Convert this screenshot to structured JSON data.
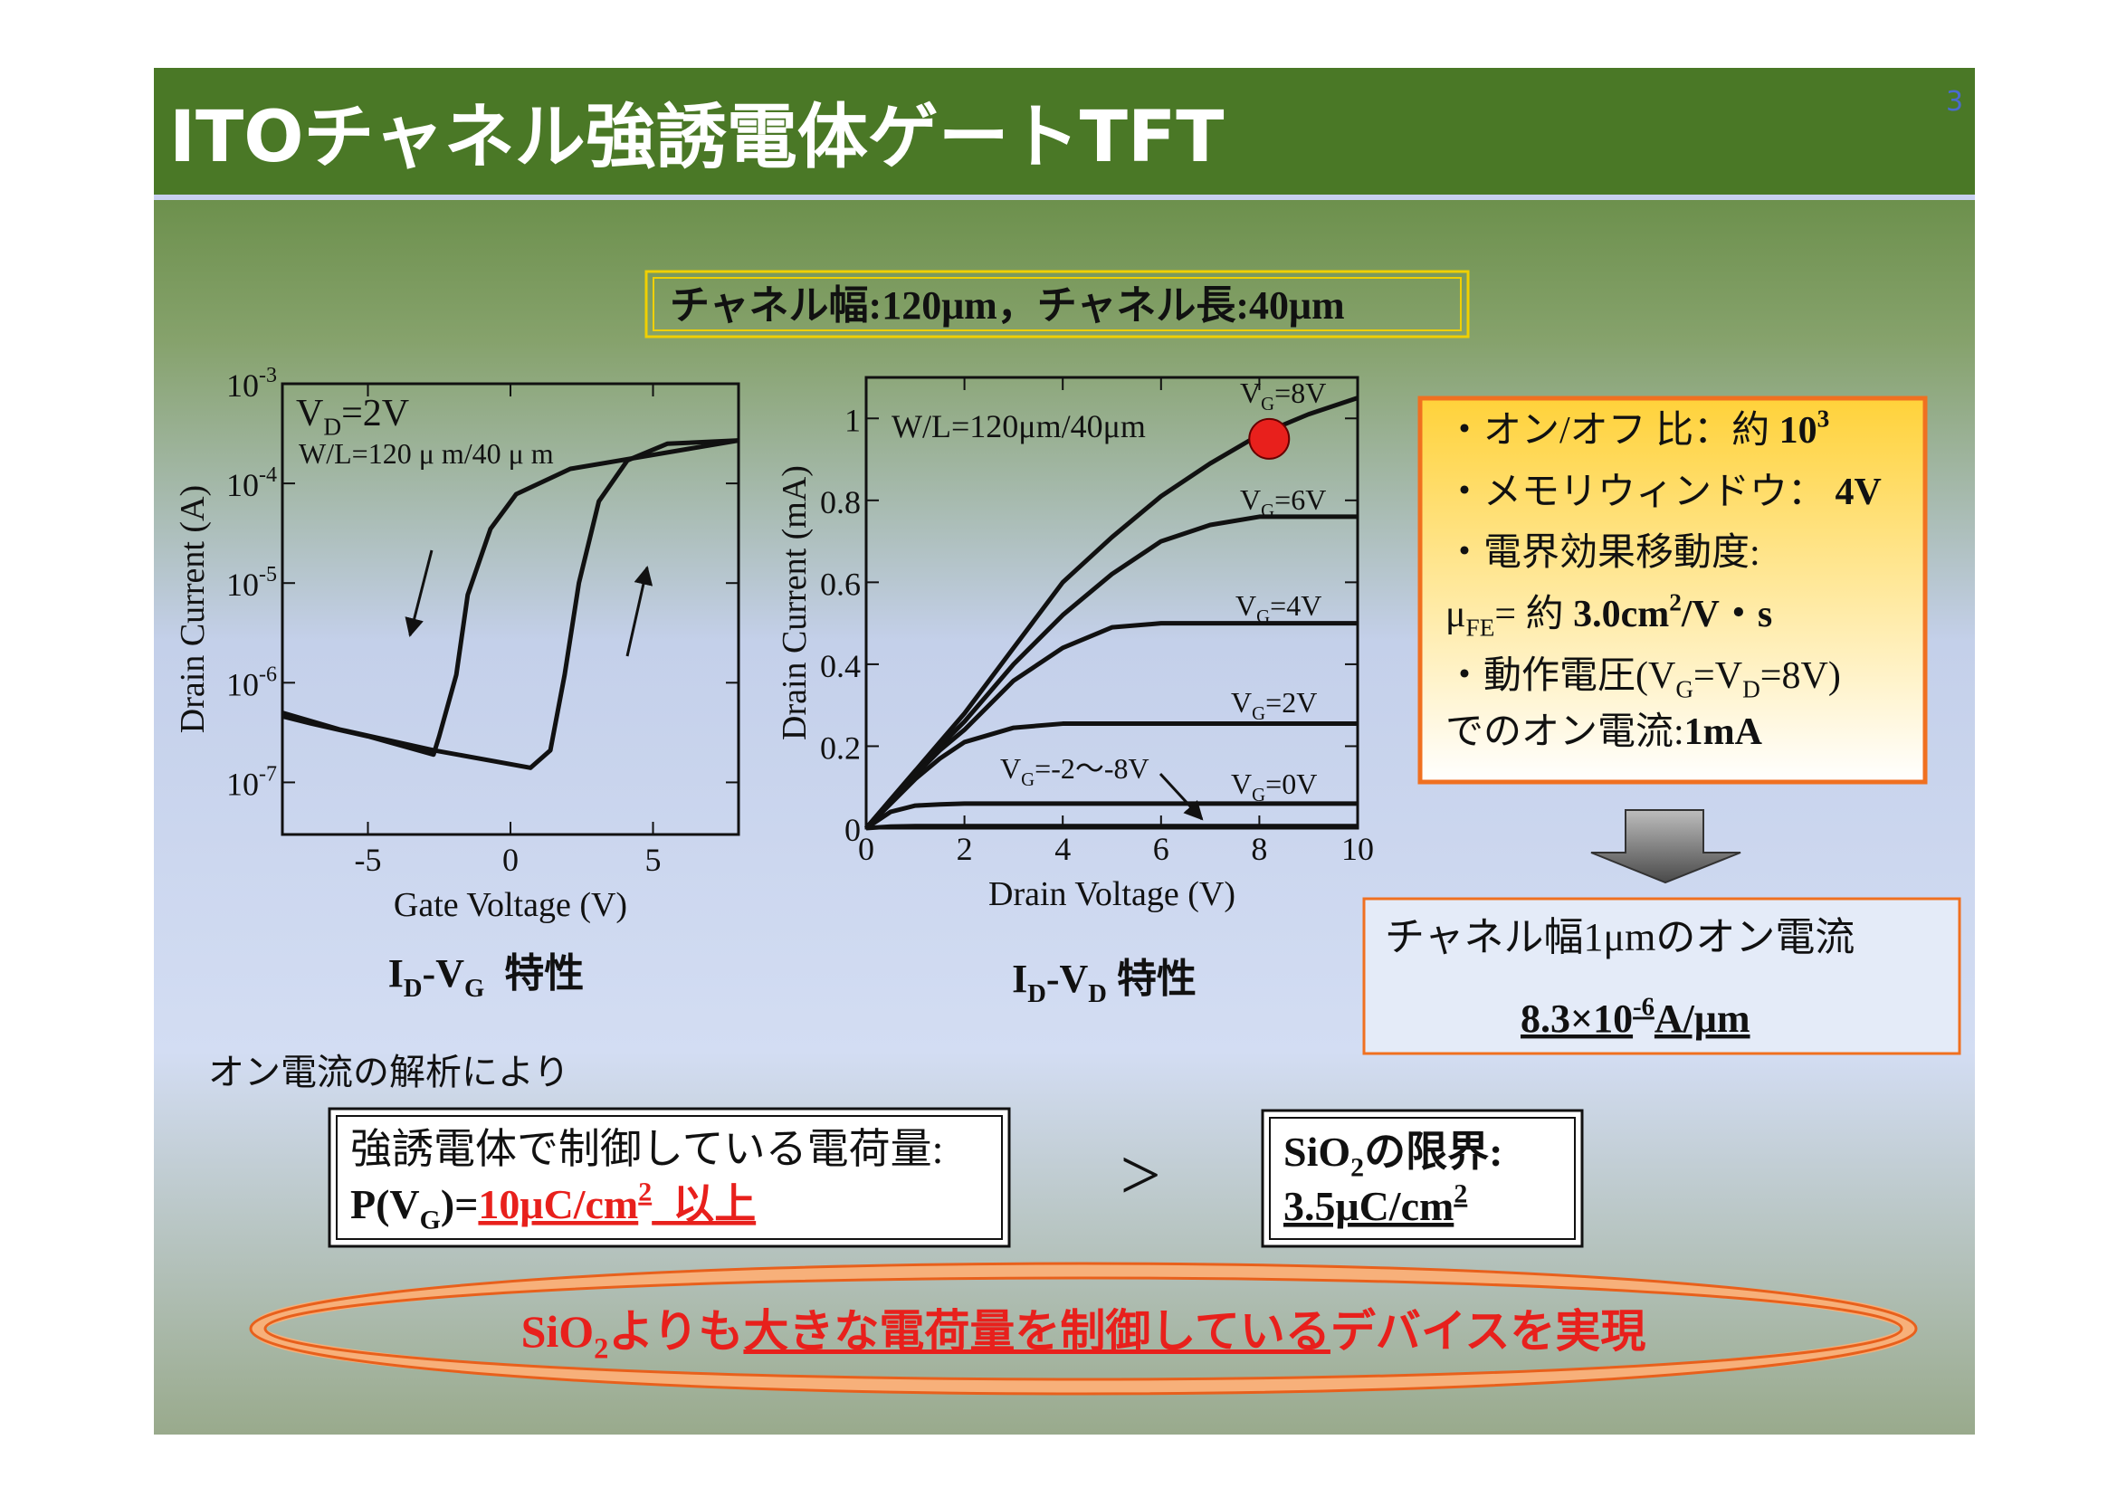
{
  "slide": {
    "title": "ITOチャネル強誘電体ゲートTFT",
    "page_number": "3",
    "spec": [
      {
        "text": "チャネル幅:120μm，チャネル長:40μm"
      }
    ],
    "summary_box": {
      "lines": [
        [
          {
            "text": "・オン/オフ 比：約 "
          },
          {
            "text": "10",
            "style": "b"
          },
          {
            "text": "3",
            "style": "sup b"
          }
        ],
        [
          {
            "text": "・メモリウィンドウ： "
          },
          {
            "text": "4V",
            "style": "b"
          }
        ],
        [
          {
            "text": "・電界効果移動度:"
          }
        ],
        [
          {
            "text": "μ"
          },
          {
            "text": "FE",
            "style": "sub"
          },
          {
            "text": "= 約 "
          },
          {
            "text": "3.0cm",
            "style": "b"
          },
          {
            "text": "2",
            "style": "sup b"
          },
          {
            "text": "/V・s",
            "style": "b"
          }
        ],
        [
          {
            "text": "・動作電圧(V"
          },
          {
            "text": "G",
            "style": "sub"
          },
          {
            "text": "=V"
          },
          {
            "text": "D",
            "style": "sub"
          },
          {
            "text": "=8V)"
          }
        ],
        [
          {
            "text": "でのオン電流:"
          },
          {
            "text": "1mA",
            "style": "b"
          }
        ]
      ]
    },
    "current_box": {
      "lines": [
        [
          {
            "text": "チャネル幅1μmのオン電流"
          }
        ],
        [
          {
            "text": "8.3×10",
            "style": "b u"
          },
          {
            "text": "-6",
            "style": "sup b u"
          },
          {
            "text": "A/μm",
            "style": "b u"
          }
        ]
      ]
    },
    "analysis_intro": "オン電流の解析により",
    "ferro_box": {
      "lines": [
        [
          {
            "text": "強誘電体で制御している電荷量:"
          }
        ],
        [
          {
            "text": "P(V",
            "style": "b"
          },
          {
            "text": "G",
            "style": "sub b"
          },
          {
            "text": ")=",
            "style": "b"
          },
          {
            "text": "10μC/cm",
            "style": "b red u"
          },
          {
            "text": "2",
            "style": "sup b red u"
          },
          {
            "text": "  以上",
            "style": "b red u"
          }
        ]
      ]
    },
    "comparison": ">",
    "sio2_box": {
      "lines": [
        [
          {
            "text": "SiO",
            "style": "b"
          },
          {
            "text": "2",
            "style": "sub b"
          },
          {
            "text": "の限界:",
            "style": "b"
          }
        ],
        [
          {
            "text": "3.5μC/cm",
            "style": "b u"
          },
          {
            "text": "2",
            "style": "sup b u"
          }
        ]
      ]
    },
    "conclusion": [
      {
        "text": "SiO"
      },
      {
        "text": "2",
        "style": "sub"
      },
      {
        "text": "よりも"
      },
      {
        "text": "大きな電荷量を制御している",
        "style": "u"
      },
      {
        "text": "デバイスを実現"
      }
    ]
  },
  "chart_data": [
    {
      "type": "line",
      "log_y": true,
      "xlabel": "Gate Voltage (V)",
      "ylabel": "Drain Current (A)",
      "caption": [
        {
          "text": "I"
        },
        {
          "text": "D",
          "style": "sub"
        },
        {
          "text": "-V"
        },
        {
          "text": "G",
          "style": "sub"
        },
        {
          "text": "  特性"
        }
      ],
      "annotations": [
        [
          {
            "text": "V"
          },
          {
            "text": "D",
            "style": "sub"
          },
          {
            "text": "=2V"
          }
        ],
        [
          {
            "text": "W/L=120 μ m/40 μ m"
          }
        ]
      ],
      "xlim": [
        -8,
        8
      ],
      "xticks": [
        -5,
        0,
        5
      ],
      "ylim": [
        3e-08,
        0.001
      ],
      "yticks": [
        {
          "value": 0.001,
          "label": "10",
          "exponent": "-3"
        },
        {
          "value": 0.0001,
          "label": "10",
          "exponent": "-4"
        },
        {
          "value": 1e-05,
          "label": "10",
          "exponent": "-5"
        },
        {
          "value": 1e-06,
          "label": "10",
          "exponent": "-6"
        },
        {
          "value": 1e-07,
          "label": "10",
          "exponent": "-7"
        }
      ],
      "color": "#111111",
      "series": [
        {
          "x": [
            -8,
            -6,
            -2.7,
            0.7,
            1.4,
            1.9,
            2.4,
            3.1,
            4.1,
            5.5,
            8
          ],
          "values": [
            5e-07,
            3.4e-07,
            2.1e-07,
            1.4e-07,
            2.1e-07,
            1.2e-06,
            1e-05,
            6.6e-05,
            0.00017,
            0.00025,
            0.00027
          ]
        },
        {
          "x": [
            8,
            2.1,
            0.2,
            -0.7,
            -1.5,
            -1.9,
            -2.5,
            -2.7,
            -5,
            -7,
            -8
          ],
          "values": [
            0.00027,
            0.00014,
            7.8e-05,
            3.5e-05,
            7.6e-06,
            1.2e-06,
            2.9e-07,
            1.9e-07,
            2.9e-07,
            3.9e-07,
            4.6e-07
          ]
        }
      ]
    },
    {
      "type": "line",
      "xlabel": "Drain Voltage (V)",
      "ylabel": "Drain Current (mA)",
      "caption": [
        {
          "text": "I"
        },
        {
          "text": "D",
          "style": "sub"
        },
        {
          "text": "-V"
        },
        {
          "text": "D",
          "style": "sub"
        },
        {
          "text": " 特性"
        }
      ],
      "annotations": [
        [
          {
            "text": "W/L=120μm/40μm"
          }
        ]
      ],
      "xlim": [
        0,
        10
      ],
      "xticks": [
        0,
        2,
        4,
        6,
        8,
        10
      ],
      "ylim": [
        0,
        1.1
      ],
      "yticks": [
        0,
        0.2,
        0.4,
        0.6,
        0.8,
        1
      ],
      "color": "#111111",
      "x": [
        0,
        0.5,
        1,
        1.5,
        2,
        3,
        4,
        5,
        6,
        7,
        8,
        9,
        10
      ],
      "series": [
        {
          "label": [
            {
              "text": "V"
            },
            {
              "text": "G",
              "style": "sub"
            },
            {
              "text": "=8V"
            }
          ],
          "values": [
            0,
            0.07,
            0.14,
            0.21,
            0.28,
            0.44,
            0.6,
            0.71,
            0.81,
            0.89,
            0.96,
            1.01,
            1.05
          ]
        },
        {
          "label": [
            {
              "text": "V"
            },
            {
              "text": "G",
              "style": "sub"
            },
            {
              "text": "=6V"
            }
          ],
          "values": [
            0,
            0.07,
            0.14,
            0.2,
            0.26,
            0.4,
            0.52,
            0.62,
            0.7,
            0.74,
            0.76,
            0.76,
            0.76
          ]
        },
        {
          "label": [
            {
              "text": "V"
            },
            {
              "text": "G",
              "style": "sub"
            },
            {
              "text": "=4V"
            }
          ],
          "values": [
            0,
            0.07,
            0.13,
            0.19,
            0.24,
            0.36,
            0.44,
            0.49,
            0.5,
            0.5,
            0.5,
            0.5,
            0.5
          ]
        },
        {
          "label": [
            {
              "text": "V"
            },
            {
              "text": "G",
              "style": "sub"
            },
            {
              "text": "=2V"
            }
          ],
          "values": [
            0,
            0.06,
            0.12,
            0.17,
            0.21,
            0.245,
            0.255,
            0.255,
            0.255,
            0.255,
            0.255,
            0.255,
            0.255
          ]
        },
        {
          "label": [
            {
              "text": "V"
            },
            {
              "text": "G",
              "style": "sub"
            },
            {
              "text": "=0V"
            }
          ],
          "values": [
            0,
            0.04,
            0.055,
            0.058,
            0.06,
            0.06,
            0.06,
            0.06,
            0.06,
            0.06,
            0.06,
            0.06,
            0.06
          ]
        },
        {
          "label": [
            {
              "text": "V"
            },
            {
              "text": "G",
              "style": "sub"
            },
            {
              "text": "=-2～-8V"
            }
          ],
          "values": [
            0,
            0.004,
            0.005,
            0.005,
            0.005,
            0.005,
            0.005,
            0.005,
            0.005,
            0.005,
            0.005,
            0.005,
            0.005
          ]
        }
      ],
      "highlight": {
        "x": 8.2,
        "y": 0.95,
        "color": "#e8201c"
      }
    }
  ]
}
